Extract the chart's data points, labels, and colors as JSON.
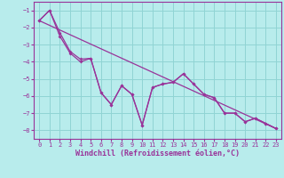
{
  "xlabel": "Windchill (Refroidissement éolien,°C)",
  "background_color": "#b8ecec",
  "grid_color": "#90d4d4",
  "line_color": "#993399",
  "xlim": [
    -0.5,
    23.5
  ],
  "ylim": [
    -8.5,
    -0.5
  ],
  "yticks": [
    -8,
    -7,
    -6,
    -5,
    -4,
    -3,
    -2,
    -1
  ],
  "xticks": [
    0,
    1,
    2,
    3,
    4,
    5,
    6,
    7,
    8,
    9,
    10,
    11,
    12,
    13,
    14,
    15,
    16,
    17,
    18,
    19,
    20,
    21,
    22,
    23
  ],
  "line1_x": [
    0,
    1,
    2,
    3,
    4,
    5,
    6,
    7,
    8,
    9,
    10,
    11,
    12,
    13,
    14,
    15,
    16,
    17,
    18,
    19,
    20,
    21,
    22,
    23
  ],
  "line1_y": [
    -1.6,
    -1.0,
    -2.5,
    -3.5,
    -4.0,
    -3.8,
    -5.8,
    -6.5,
    -5.4,
    -5.9,
    -7.7,
    -5.5,
    -5.3,
    -5.2,
    -4.7,
    -5.3,
    -5.9,
    -6.1,
    -7.0,
    -7.0,
    -7.5,
    -7.3,
    -7.6,
    -7.9
  ],
  "line2_x": [
    0,
    1,
    2,
    3,
    4,
    5,
    6,
    7,
    8,
    9,
    10,
    11,
    12,
    13,
    14,
    15,
    16,
    17,
    18,
    19,
    20,
    21,
    22,
    23
  ],
  "line2_y": [
    -1.6,
    -1.0,
    -2.3,
    -3.4,
    -3.85,
    -3.8,
    -5.8,
    -6.5,
    -5.4,
    -5.9,
    -7.7,
    -5.5,
    -5.3,
    -5.2,
    -4.7,
    -5.3,
    -5.9,
    -6.1,
    -7.0,
    -7.0,
    -7.5,
    -7.3,
    -7.6,
    -7.9
  ],
  "trend_x": [
    0,
    23
  ],
  "trend_y": [
    -1.6,
    -7.9
  ],
  "tick_fontsize": 5,
  "xlabel_fontsize": 6
}
